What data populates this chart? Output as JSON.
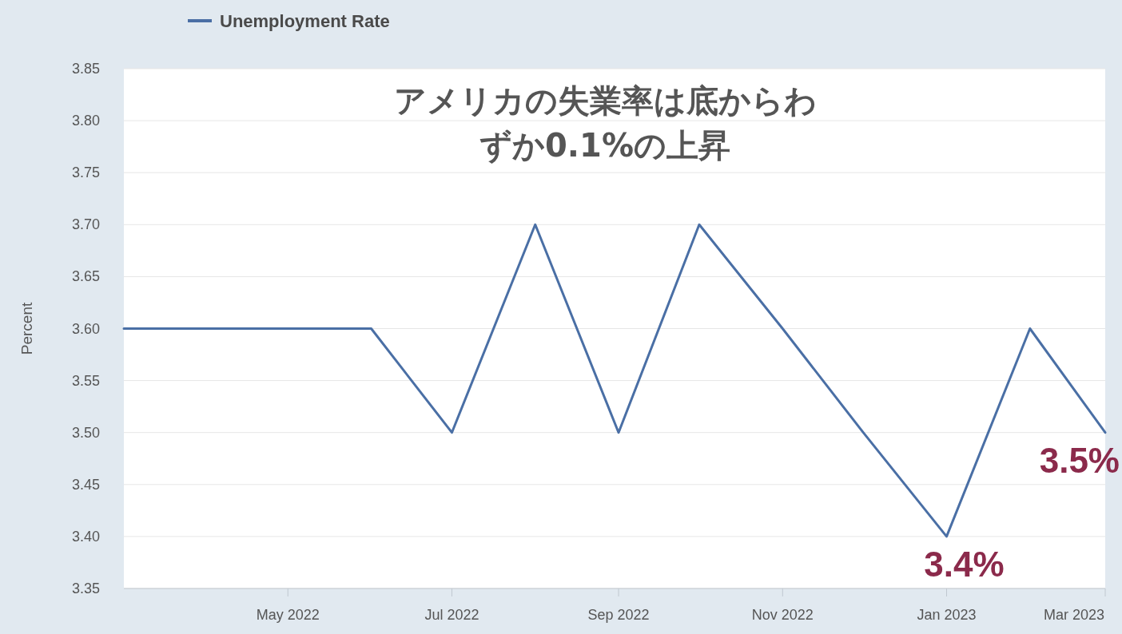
{
  "chart_data": {
    "type": "line",
    "title": "アメリカの失業率は底からわずか0.1%の上昇",
    "ylabel": "Percent",
    "x": [
      "2022-03",
      "2022-04",
      "2022-05",
      "2022-06",
      "2022-07",
      "2022-08",
      "2022-09",
      "2022-10",
      "2022-11",
      "2022-12",
      "2023-01",
      "2023-02",
      "2023-03"
    ],
    "series": [
      {
        "name": "Unemployment Rate",
        "color": "#4a6fa5",
        "values": [
          3.6,
          3.6,
          3.6,
          3.6,
          3.5,
          3.7,
          3.5,
          3.7,
          3.6,
          3.5,
          3.4,
          3.6,
          3.5
        ]
      }
    ],
    "xlim": [
      "2022-03",
      "2023-03"
    ],
    "xticks": [
      {
        "value": "2022-05",
        "label": "May 2022"
      },
      {
        "value": "2022-07",
        "label": "Jul 2022"
      },
      {
        "value": "2022-09",
        "label": "Sep 2022"
      },
      {
        "value": "2022-11",
        "label": "Nov 2022"
      },
      {
        "value": "2023-01",
        "label": "Jan 2023"
      },
      {
        "value": "2023-03",
        "label": "Mar 2023"
      }
    ],
    "ylim": [
      3.35,
      3.85
    ],
    "yticks": [
      {
        "value": 3.35,
        "label": "3.35"
      },
      {
        "value": 3.4,
        "label": "3.40"
      },
      {
        "value": 3.45,
        "label": "3.45"
      },
      {
        "value": 3.5,
        "label": "3.50"
      },
      {
        "value": 3.55,
        "label": "3.55"
      },
      {
        "value": 3.6,
        "label": "3.60"
      },
      {
        "value": 3.65,
        "label": "3.65"
      },
      {
        "value": 3.7,
        "label": "3.70"
      },
      {
        "value": 3.75,
        "label": "3.75"
      },
      {
        "value": 3.8,
        "label": "3.80"
      },
      {
        "value": 3.85,
        "label": "3.85"
      }
    ],
    "grid": "y",
    "legend": "top left",
    "annotations": [
      {
        "text": "3.4%",
        "x": "2023-01",
        "y": 3.4
      },
      {
        "text": "3.5%",
        "x": "2023-03",
        "y": 3.5
      }
    ]
  }
}
